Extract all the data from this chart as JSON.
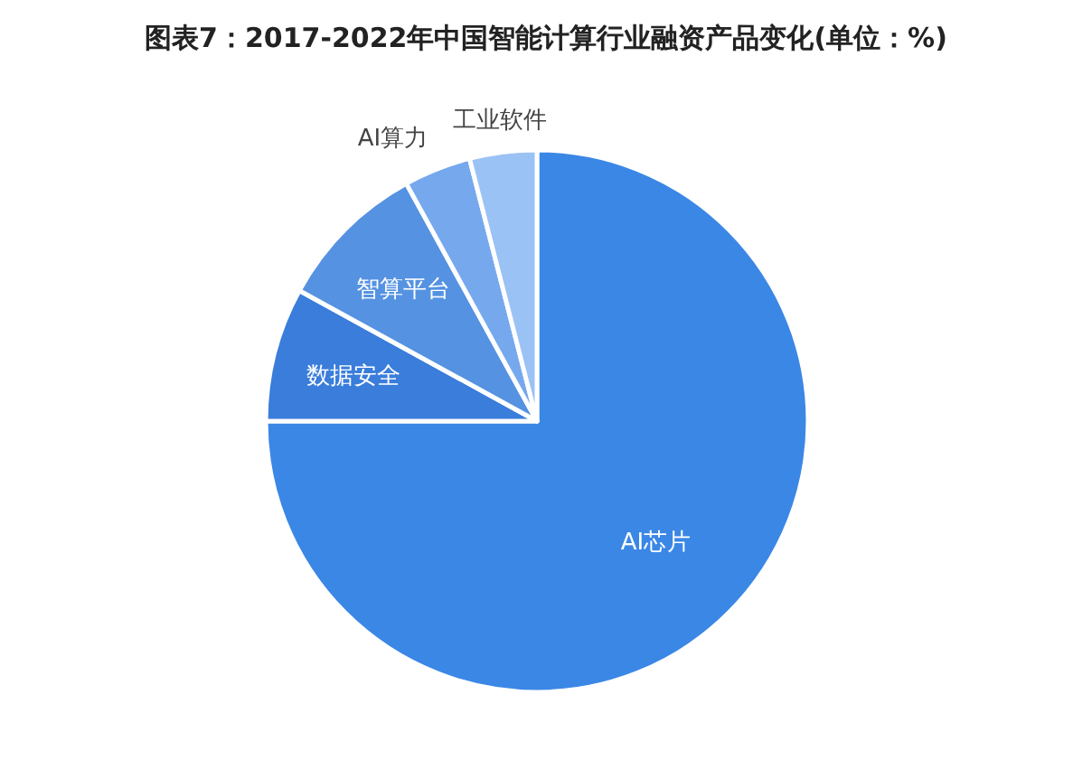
{
  "chart_data": {
    "type": "pie",
    "title": "图表7：2017-2022年中国智能计算行业融资产品变化(单位：%)",
    "categories": [
      "AI芯片",
      "数据安全",
      "智算平台",
      "AI算力",
      "工业软件"
    ],
    "values": [
      75,
      8,
      9,
      4,
      4
    ],
    "colors": [
      "#3b87e6",
      "#3a7ddb",
      "#5592e2",
      "#76a8ee",
      "#9bc2f4"
    ]
  }
}
